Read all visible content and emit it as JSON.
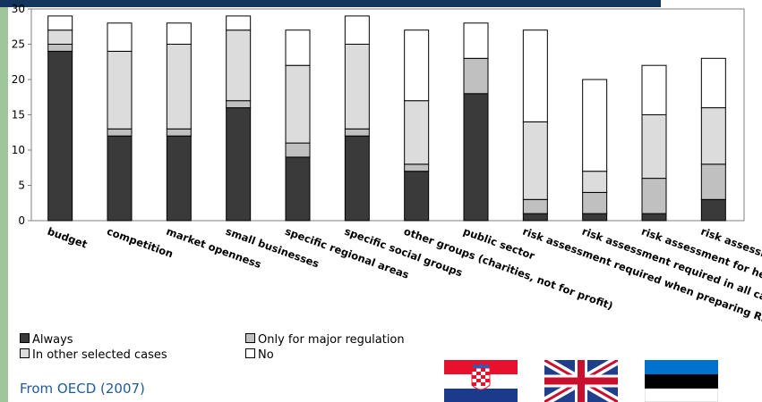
{
  "chart_data": {
    "type": "bar",
    "stacked": true,
    "categories": [
      "budget",
      "competition",
      "market openness",
      "small businesses",
      "specific regional areas",
      "specific social groups",
      "other groups (charities, not for profit)",
      "public sector",
      "risk assessment required when preparing RIA",
      "risk assessment required in all cases",
      "risk assessment for health and safety",
      "risk assessment for environmental Reg."
    ],
    "series": [
      {
        "name": "Always",
        "values": [
          24,
          12,
          12,
          16,
          9,
          12,
          7,
          18,
          1,
          1,
          1,
          3
        ],
        "color": "#3a3a3a"
      },
      {
        "name": "Only for major regulation",
        "values": [
          1,
          1,
          1,
          1,
          2,
          1,
          1,
          5,
          2,
          3,
          5,
          5
        ],
        "color": "#c0c0c0"
      },
      {
        "name": "In other selected cases",
        "values": [
          2,
          11,
          12,
          10,
          11,
          12,
          9,
          0,
          11,
          3,
          9,
          8
        ],
        "color": "#dcdcdc"
      },
      {
        "name": "No",
        "values": [
          2,
          4,
          3,
          2,
          5,
          4,
          10,
          5,
          13,
          13,
          7,
          7
        ],
        "color": "#ffffff"
      }
    ],
    "yticks": [
      0,
      5,
      10,
      15,
      20,
      25,
      30
    ],
    "ylim": [
      0,
      30
    ],
    "grid": false,
    "legend_position": "bottom-left",
    "xlabel": "",
    "ylabel": ""
  },
  "source_text": "From OECD (2007)",
  "flags": [
    {
      "name": "croatia-flag",
      "colors": [
        "#e8112d",
        "#ffffff",
        "#1a3a8c"
      ]
    },
    {
      "name": "united-kingdom-flag",
      "colors": [
        "#1f3f8c",
        "#ffffff",
        "#c8102e"
      ]
    },
    {
      "name": "estonia-flag",
      "colors": [
        "#0072ce",
        "#000000",
        "#ffffff"
      ]
    }
  ]
}
